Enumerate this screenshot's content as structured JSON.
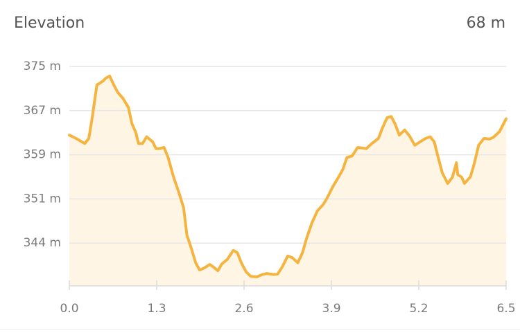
{
  "chart_data": {
    "type": "area",
    "title": "Elevation",
    "summary": "68 m",
    "color": "#f5b43f",
    "fill": "#fef5e4",
    "grid": true,
    "x": [
      0.0,
      0.1,
      0.23,
      0.29,
      0.34,
      0.41,
      0.5,
      0.54,
      0.6,
      0.65,
      0.72,
      0.8,
      0.88,
      0.93,
      0.99,
      1.03,
      1.09,
      1.15,
      1.24,
      1.29,
      1.34,
      1.41,
      1.47,
      1.55,
      1.63,
      1.7,
      1.75,
      1.82,
      1.88,
      1.94,
      2.01,
      2.09,
      2.15,
      2.21,
      2.27,
      2.35,
      2.44,
      2.5,
      2.56,
      2.63,
      2.7,
      2.79,
      2.87,
      2.94,
      3.04,
      3.1,
      3.17,
      3.25,
      3.32,
      3.4,
      3.47,
      3.53,
      3.61,
      3.69,
      3.78,
      3.84,
      3.92,
      4.0,
      4.07,
      4.13,
      4.21,
      4.29,
      4.42,
      4.5,
      4.6,
      4.66,
      4.73,
      4.79,
      4.85,
      4.91,
      4.99,
      5.06,
      5.14,
      5.22,
      5.3,
      5.37,
      5.43,
      5.49,
      5.55,
      5.63,
      5.7,
      5.76,
      5.78,
      5.84,
      5.88,
      5.97,
      6.03,
      6.09,
      6.17,
      6.25,
      6.31,
      6.4,
      6.5
    ],
    "values": [
      362.8,
      362.2,
      361.3,
      362.2,
      365.9,
      371.7,
      372.4,
      372.9,
      373.3,
      372.0,
      370.4,
      369.3,
      367.7,
      364.9,
      363.2,
      361.3,
      361.3,
      362.5,
      361.6,
      360.4,
      360.4,
      360.6,
      358.8,
      355.4,
      352.6,
      349.9,
      345.0,
      342.5,
      340.1,
      338.8,
      339.2,
      339.8,
      339.3,
      338.7,
      339.9,
      340.7,
      342.3,
      341.9,
      340.1,
      338.5,
      337.7,
      337.6,
      338.0,
      338.2,
      338.0,
      338.1,
      339.4,
      341.3,
      341.0,
      340.1,
      341.9,
      344.4,
      347.2,
      349.3,
      350.5,
      351.7,
      353.6,
      355.2,
      356.7,
      358.8,
      359.1,
      360.6,
      360.4,
      361.3,
      362.2,
      364.1,
      365.9,
      366.1,
      364.7,
      362.8,
      363.7,
      362.7,
      361.0,
      361.6,
      362.2,
      362.5,
      361.6,
      358.8,
      356.1,
      354.2,
      355.3,
      357.9,
      355.8,
      355.3,
      354.2,
      355.4,
      357.9,
      361.0,
      362.2,
      362.1,
      362.4,
      363.4,
      365.7
    ],
    "xlim": [
      0,
      6.5
    ],
    "xticks": [
      {
        "value": 0,
        "label": "0.0"
      },
      1.3,
      2.6,
      3.9,
      5.2,
      6.5
    ],
    "ylim": [
      336,
      375
    ],
    "yticks": [
      {
        "value": 375,
        "label": "375 m"
      },
      {
        "value": 367.15,
        "label": "367 m"
      },
      {
        "value": 359.3,
        "label": "359 m"
      },
      {
        "value": 351.45,
        "label": "351 m"
      },
      {
        "value": 343.6,
        "label": "344 m"
      }
    ]
  }
}
